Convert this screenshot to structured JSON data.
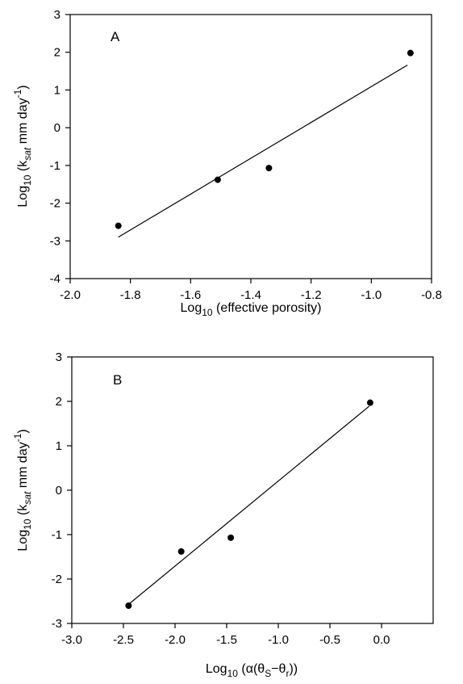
{
  "chart_data": [
    {
      "type": "scatter",
      "panel_label": "A",
      "xlabel": {
        "base": "Log",
        "sub": "10",
        "rest": " (effective porosity)"
      },
      "ylabel": {
        "pre": "Log",
        "pre_sub": "10",
        "open": " (k",
        "var_sub": "sat",
        "unit": " mm day",
        "sup": "-1",
        "close": ")"
      },
      "xlim": [
        -2.0,
        -0.8
      ],
      "ylim": [
        -4,
        3
      ],
      "xticks": [
        -2.0,
        -1.8,
        -1.6,
        -1.4,
        -1.2,
        -1.0,
        -0.8
      ],
      "xtick_labels": [
        "-2.0",
        "-1.8",
        "-1.6",
        "-1.4",
        "-1.2",
        "-1.0",
        "-0.8"
      ],
      "yticks": [
        -4,
        -3,
        -2,
        -1,
        0,
        1,
        2,
        3
      ],
      "ytick_labels": [
        "-4",
        "-3",
        "-2",
        "-1",
        "0",
        "1",
        "2",
        "3"
      ],
      "points": [
        {
          "x": -1.84,
          "y": -2.6
        },
        {
          "x": -1.51,
          "y": -1.38
        },
        {
          "x": -1.34,
          "y": -1.07
        },
        {
          "x": -0.87,
          "y": 1.98
        }
      ],
      "fit_line": {
        "x1": -1.84,
        "y1": -2.9,
        "x2": -0.88,
        "y2": 1.66
      },
      "grid": false
    },
    {
      "type": "scatter",
      "panel_label": "B",
      "xlabel": {
        "base": "Log",
        "sub": "10",
        "rest_open": " (α(θ",
        "s_sub": "S",
        "mid": "−θ",
        "r_sub": "r",
        "close": "))"
      },
      "ylabel": {
        "pre": "Log",
        "pre_sub": "10",
        "open": " (k",
        "var_sub": "sat",
        "unit": " mm day",
        "sup": "-1",
        "close": ")"
      },
      "xlim": [
        -3.0,
        0.5
      ],
      "ylim": [
        -3,
        3
      ],
      "xticks": [
        -3.0,
        -2.5,
        -2.0,
        -1.5,
        -1.0,
        -0.5,
        0.0
      ],
      "xtick_labels": [
        "-3.0",
        "-2.5",
        "-2.0",
        "-1.5",
        "-1.0",
        "-0.5",
        "0.0"
      ],
      "yticks": [
        -3,
        -2,
        -1,
        0,
        1,
        2,
        3
      ],
      "ytick_labels": [
        "-3",
        "-2",
        "-1",
        "0",
        "1",
        "2",
        "3"
      ],
      "points": [
        {
          "x": -2.45,
          "y": -2.6
        },
        {
          "x": -1.94,
          "y": -1.38
        },
        {
          "x": -1.46,
          "y": -1.07
        },
        {
          "x": -0.11,
          "y": 1.97
        }
      ],
      "fit_line": {
        "x1": -2.45,
        "y1": -2.57,
        "x2": -0.12,
        "y2": 1.89
      },
      "grid": false
    }
  ]
}
